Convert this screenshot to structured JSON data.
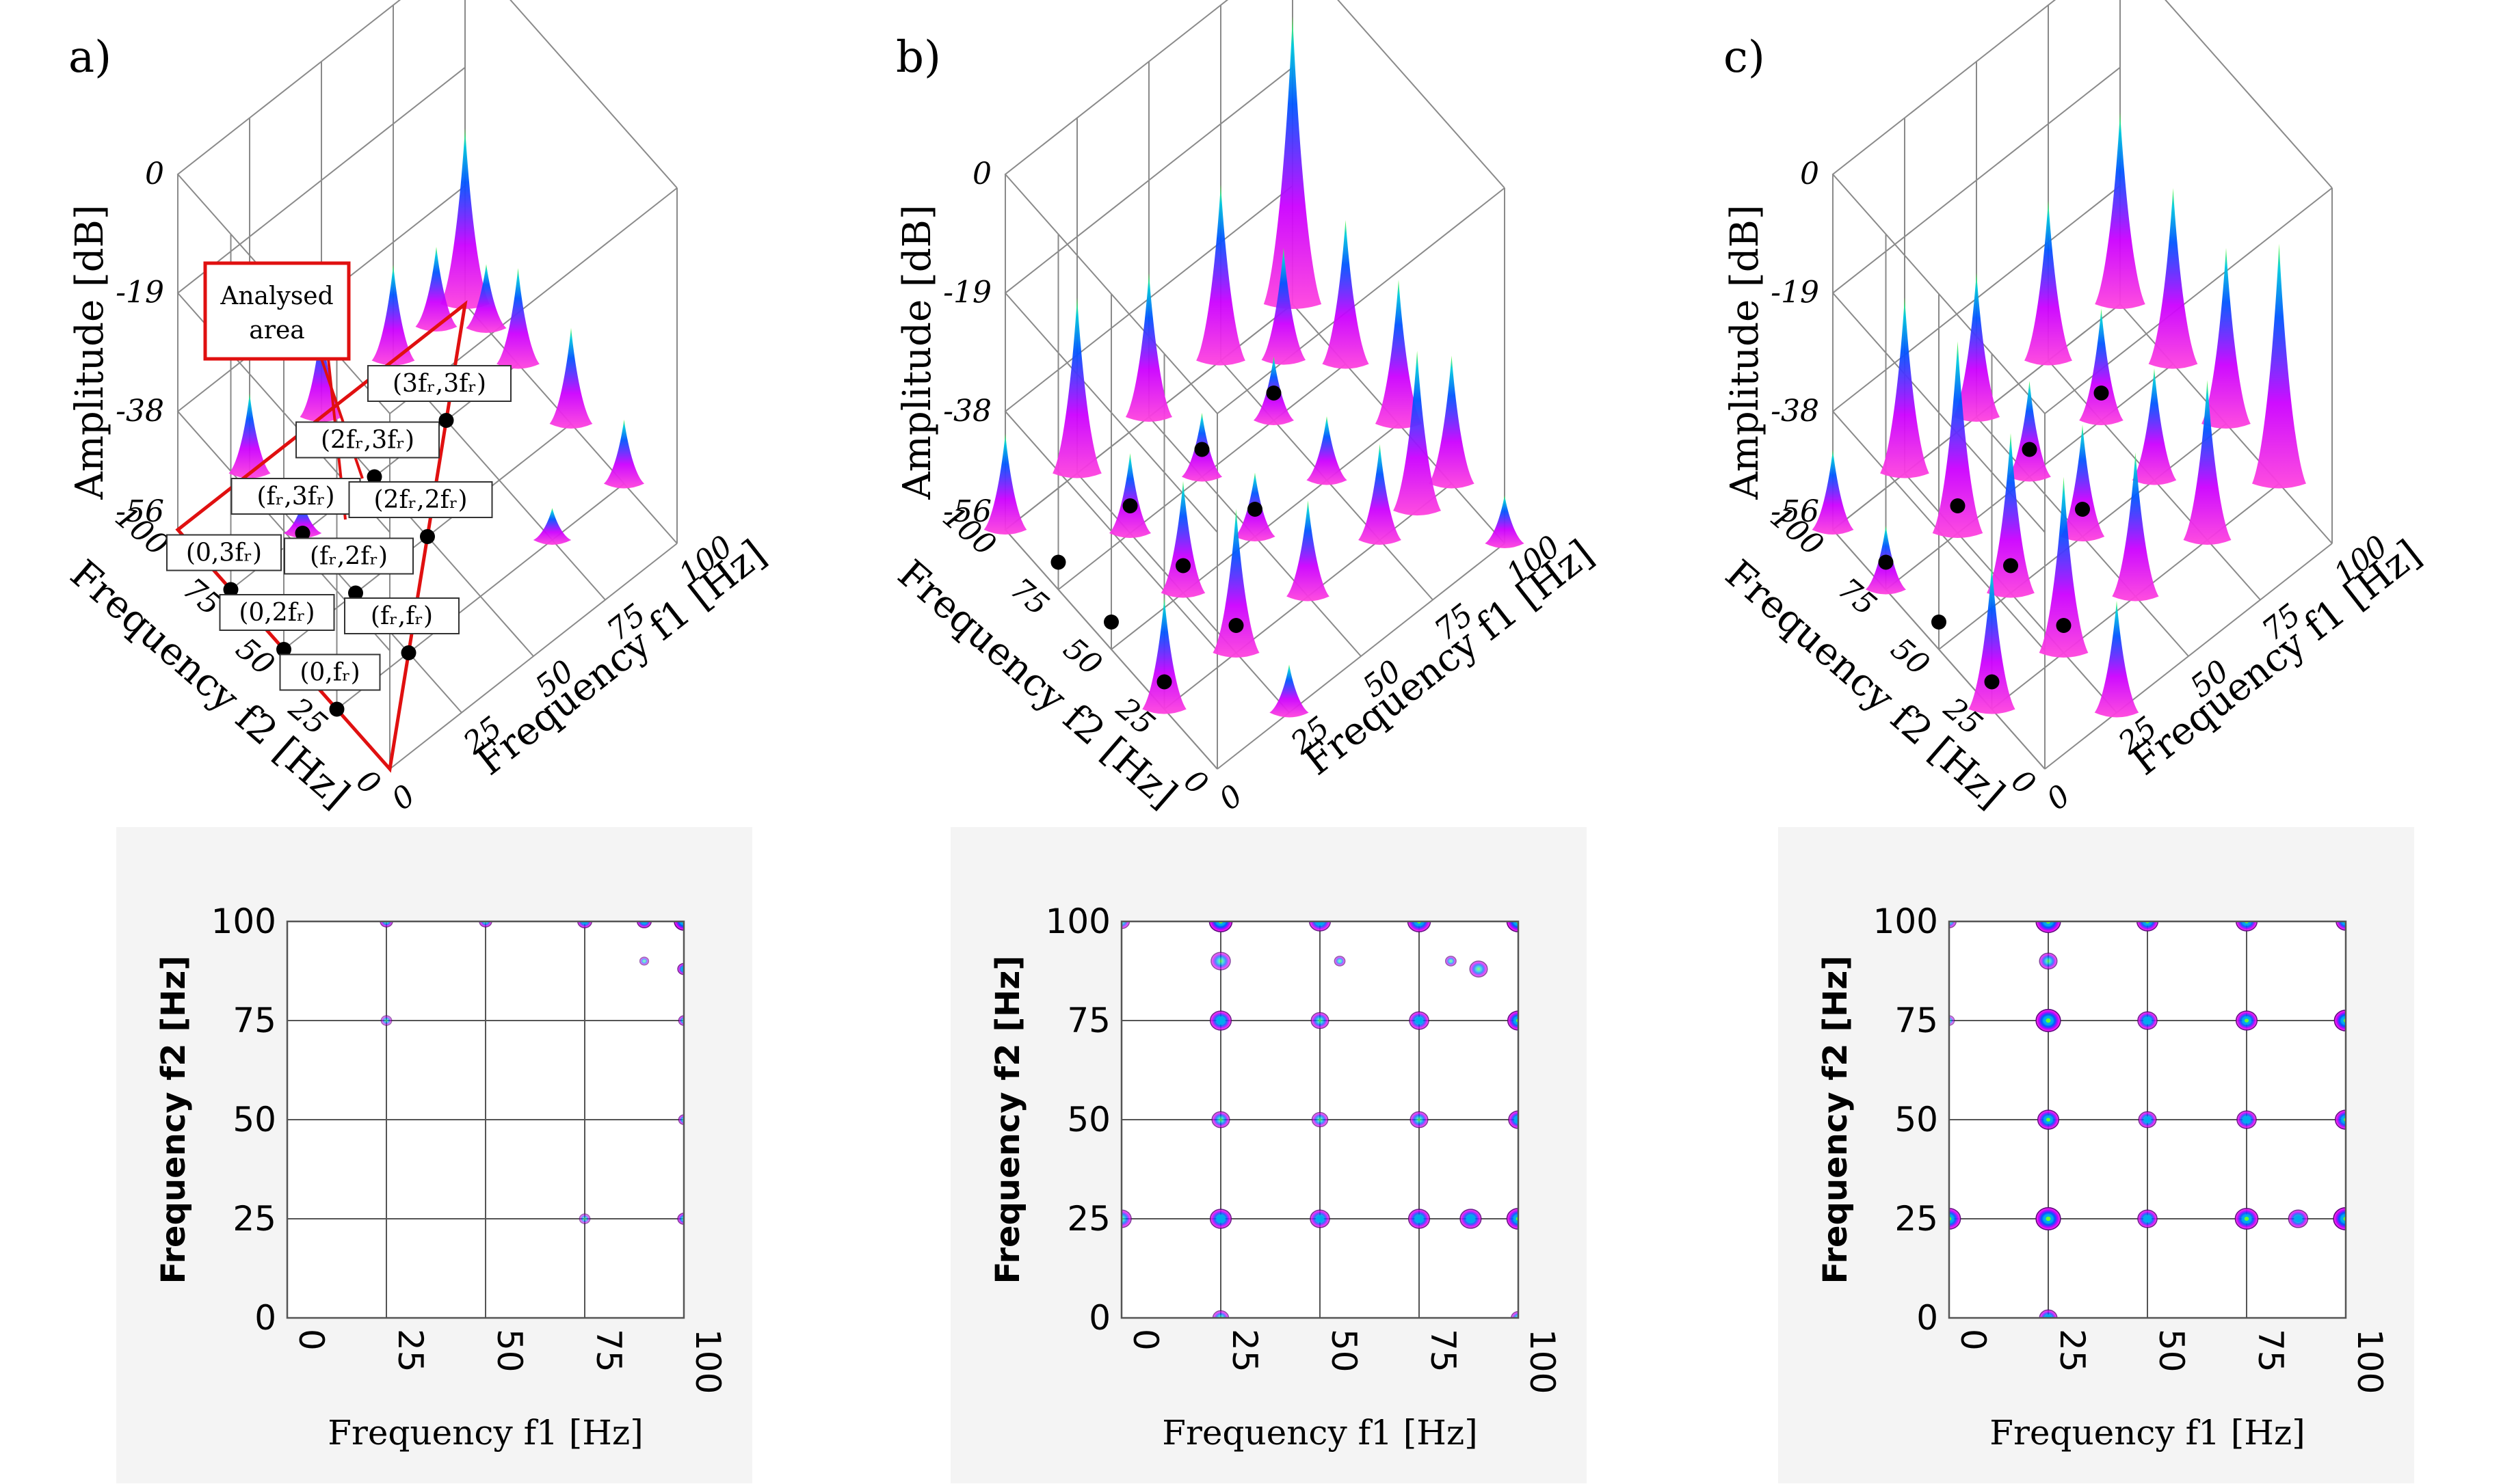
{
  "colors": {
    "peak_top": "#66ff33",
    "peak_mid": "#0066ff",
    "peak_low": "#cc00ff",
    "peak_base": "#ff44dd",
    "analysed": "#e01010",
    "marker": "#000000"
  },
  "chart_data": [
    {
      "panel": "a)",
      "type": "surface3d",
      "xlabel": "Frequency f1 [Hz]",
      "ylabel": "Frequency f2 [Hz]",
      "zlabel": "Amplitude [dB]",
      "xticks": [
        "0",
        "25",
        "50",
        "75",
        "100"
      ],
      "yticks": [
        "0",
        "25",
        "50",
        "75",
        "100"
      ],
      "zticks": [
        "0",
        "-19",
        "-38",
        "-56"
      ],
      "analysed_area_label": "Analysed area",
      "annotations": [
        {
          "label": "(fᵣ,3fᵣ)",
          "f1": 25,
          "f2": 75
        },
        {
          "label": "(2fᵣ,3fᵣ)",
          "f1": 50,
          "f2": 75
        },
        {
          "label": "(3fᵣ,3fᵣ)",
          "f1": 75,
          "f2": 75
        },
        {
          "label": "(0,3fᵣ)",
          "f1": 0,
          "f2": 75
        },
        {
          "label": "(fᵣ,2fᵣ)",
          "f1": 25,
          "f2": 50
        },
        {
          "label": "(0,2fᵣ)",
          "f1": 0,
          "f2": 50
        },
        {
          "label": "(2fᵣ,2fᵣ)",
          "f1": 50,
          "f2": 50
        },
        {
          "label": "(0,fᵣ)",
          "f1": 0,
          "f2": 25
        },
        {
          "label": "(fᵣ,fᵣ)",
          "f1": 25,
          "f2": 25
        }
      ],
      "peaks": [
        [
          100,
          100,
          0.55
        ],
        [
          75,
          100,
          0.3
        ],
        [
          50,
          100,
          0.3
        ],
        [
          25,
          100,
          0.25
        ],
        [
          100,
          75,
          0.3
        ],
        [
          100,
          50,
          0.3
        ],
        [
          100,
          25,
          0.2
        ],
        [
          75,
          25,
          0.1
        ],
        [
          25,
          75,
          0.1
        ],
        [
          90,
          100,
          0.25
        ],
        [
          100,
          90,
          0.2
        ]
      ]
    },
    {
      "panel": "b)",
      "type": "surface3d",
      "xlabel": "Frequency f1 [Hz]",
      "ylabel": "Frequency f2 [Hz]",
      "zlabel": "Amplitude [dB]",
      "xticks": [
        "0",
        "25",
        "50",
        "75",
        "100"
      ],
      "yticks": [
        "0",
        "25",
        "50",
        "75",
        "100"
      ],
      "zticks": [
        "0",
        "-19",
        "-38",
        "-56"
      ],
      "peaks": [
        [
          100,
          100,
          0.9
        ],
        [
          75,
          100,
          0.55
        ],
        [
          50,
          100,
          0.45
        ],
        [
          25,
          100,
          0.55
        ],
        [
          100,
          75,
          0.45
        ],
        [
          100,
          50,
          0.45
        ],
        [
          100,
          25,
          0.4
        ],
        [
          75,
          75,
          0.2
        ],
        [
          50,
          75,
          0.2
        ],
        [
          25,
          75,
          0.25
        ],
        [
          75,
          50,
          0.2
        ],
        [
          50,
          50,
          0.2
        ],
        [
          25,
          50,
          0.35
        ],
        [
          75,
          25,
          0.3
        ],
        [
          50,
          25,
          0.3
        ],
        [
          25,
          25,
          0.45
        ],
        [
          0,
          25,
          0.35
        ],
        [
          0,
          100,
          0.3
        ],
        [
          25,
          0,
          0.15
        ],
        [
          100,
          0,
          0.15
        ],
        [
          88,
          25,
          0.5
        ],
        [
          88,
          88,
          0.35
        ]
      ]
    },
    {
      "panel": "c)",
      "type": "surface3d",
      "xlabel": "Frequency f1 [Hz]",
      "ylabel": "Frequency f2 [Hz]",
      "zlabel": "Amplitude [dB]",
      "xticks": [
        "0",
        "25",
        "50",
        "75",
        "100"
      ],
      "yticks": [
        "0",
        "25",
        "50",
        "75",
        "100"
      ],
      "zticks": [
        "0",
        "-19",
        "-38",
        "-56"
      ],
      "peaks": [
        [
          100,
          100,
          0.6
        ],
        [
          75,
          100,
          0.5
        ],
        [
          50,
          100,
          0.45
        ],
        [
          25,
          100,
          0.55
        ],
        [
          100,
          75,
          0.55
        ],
        [
          100,
          50,
          0.55
        ],
        [
          100,
          25,
          0.75
        ],
        [
          75,
          75,
          0.35
        ],
        [
          50,
          75,
          0.3
        ],
        [
          25,
          75,
          0.6
        ],
        [
          75,
          50,
          0.35
        ],
        [
          50,
          50,
          0.35
        ],
        [
          25,
          50,
          0.5
        ],
        [
          75,
          25,
          0.5
        ],
        [
          50,
          25,
          0.45
        ],
        [
          25,
          25,
          0.55
        ],
        [
          0,
          25,
          0.45
        ],
        [
          0,
          75,
          0.2
        ],
        [
          25,
          0,
          0.35
        ],
        [
          0,
          100,
          0.25
        ]
      ]
    },
    {
      "panel": "a)",
      "type": "heatmap",
      "xlabel": "Frequency f1 [Hz]",
      "ylabel": "Frequency f2 [Hz]",
      "xlim": [
        0,
        100
      ],
      "ylim": [
        0,
        100
      ],
      "xticks": [
        "0",
        "25",
        "50",
        "75",
        "100"
      ],
      "yticks": [
        "0",
        "25",
        "50",
        "75",
        "100"
      ],
      "blobs": [
        [
          100,
          100,
          2.2,
          1
        ],
        [
          75,
          100,
          1.6,
          0.7
        ],
        [
          50,
          100,
          1.4,
          0.6
        ],
        [
          25,
          100,
          1.4,
          0.6
        ],
        [
          100,
          88,
          1.4,
          0.7
        ],
        [
          100,
          75,
          1.2,
          0.5
        ],
        [
          100,
          50,
          1.2,
          0.5
        ],
        [
          100,
          25,
          1.4,
          0.6
        ],
        [
          90,
          100,
          1.6,
          0.8
        ],
        [
          25,
          75,
          1.2,
          0.3
        ],
        [
          75,
          25,
          1.2,
          0.3
        ],
        [
          90,
          90,
          1.0,
          0.3
        ]
      ]
    },
    {
      "panel": "b)",
      "type": "heatmap",
      "xlabel": "Frequency f1 [Hz]",
      "ylabel": "Frequency f2 [Hz]",
      "xlim": [
        0,
        100
      ],
      "ylim": [
        0,
        100
      ],
      "xticks": [
        "0",
        "25",
        "50",
        "75",
        "100"
      ],
      "yticks": [
        "0",
        "25",
        "50",
        "75",
        "100"
      ],
      "blobs": [
        [
          100,
          100,
          2.6,
          1
        ],
        [
          75,
          100,
          2.6,
          0.9
        ],
        [
          50,
          100,
          2.4,
          0.8
        ],
        [
          25,
          100,
          2.6,
          1
        ],
        [
          100,
          75,
          2.4,
          0.9
        ],
        [
          100,
          50,
          2.2,
          0.8
        ],
        [
          100,
          25,
          2.6,
          0.9
        ],
        [
          75,
          75,
          2.2,
          0.7
        ],
        [
          50,
          75,
          2.0,
          0.6
        ],
        [
          25,
          75,
          2.4,
          0.8
        ],
        [
          75,
          50,
          2.0,
          0.6
        ],
        [
          50,
          50,
          1.8,
          0.5
        ],
        [
          25,
          50,
          2.0,
          0.6
        ],
        [
          75,
          25,
          2.4,
          0.8
        ],
        [
          50,
          25,
          2.2,
          0.7
        ],
        [
          25,
          25,
          2.4,
          0.8
        ],
        [
          0,
          25,
          2.2,
          0.6
        ],
        [
          0,
          100,
          1.8,
          0.5
        ],
        [
          25,
          0,
          1.8,
          0.5
        ],
        [
          100,
          0,
          1.6,
          0.5
        ],
        [
          88,
          25,
          2.4,
          0.8
        ],
        [
          25,
          90,
          2.2,
          0.5
        ],
        [
          90,
          88,
          2.0,
          0.5
        ],
        [
          55,
          90,
          1.2,
          0.4
        ],
        [
          83,
          90,
          1.2,
          0.4
        ]
      ]
    },
    {
      "panel": "c)",
      "type": "heatmap",
      "xlabel": "Frequency f1 [Hz]",
      "ylabel": "Frequency f2 [Hz]",
      "xlim": [
        0,
        100
      ],
      "ylim": [
        0,
        100
      ],
      "xticks": [
        "0",
        "25",
        "50",
        "75",
        "100"
      ],
      "yticks": [
        "0",
        "25",
        "50",
        "75",
        "100"
      ],
      "blobs": [
        [
          100,
          100,
          2.2,
          0.9
        ],
        [
          75,
          100,
          2.4,
          0.9
        ],
        [
          50,
          100,
          2.4,
          0.9
        ],
        [
          25,
          100,
          2.8,
          1
        ],
        [
          100,
          75,
          2.6,
          1
        ],
        [
          100,
          50,
          2.4,
          0.9
        ],
        [
          100,
          25,
          2.8,
          1
        ],
        [
          75,
          75,
          2.4,
          0.9
        ],
        [
          50,
          75,
          2.2,
          0.8
        ],
        [
          25,
          75,
          2.8,
          1
        ],
        [
          75,
          50,
          2.2,
          0.8
        ],
        [
          50,
          50,
          2.0,
          0.7
        ],
        [
          25,
          50,
          2.4,
          0.9
        ],
        [
          75,
          25,
          2.6,
          0.9
        ],
        [
          50,
          25,
          2.2,
          0.8
        ],
        [
          25,
          25,
          2.8,
          1
        ],
        [
          0,
          25,
          2.6,
          0.9
        ],
        [
          0,
          100,
          1.6,
          0.5
        ],
        [
          25,
          0,
          2.0,
          0.7
        ],
        [
          0,
          75,
          1.2,
          0.3
        ],
        [
          25,
          90,
          2.0,
          0.6
        ],
        [
          88,
          25,
          2.2,
          0.7
        ]
      ]
    }
  ]
}
